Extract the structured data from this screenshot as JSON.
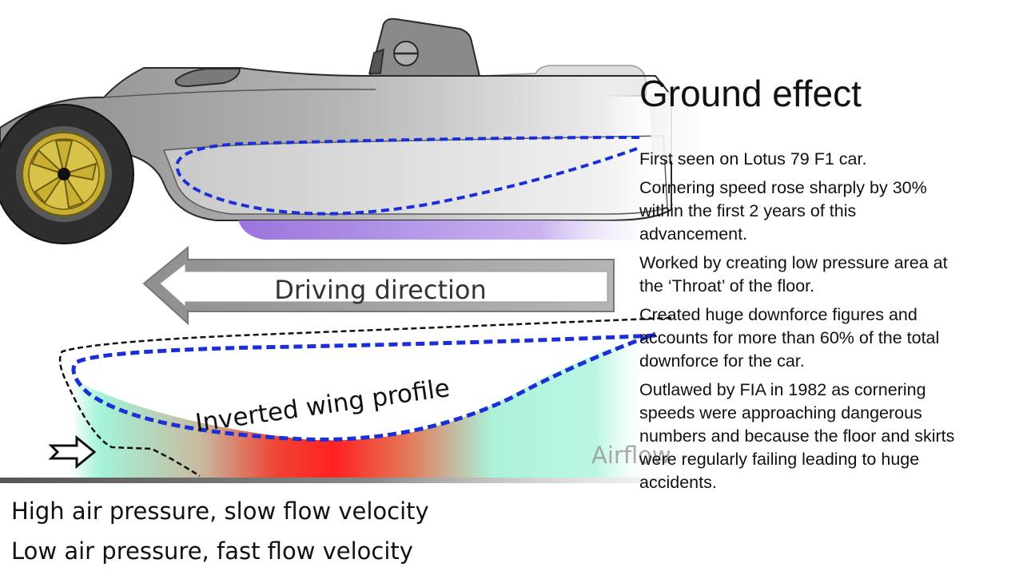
{
  "slide": {
    "title": "Ground effect",
    "bullets": [
      "First seen on Lotus 79 F1 car.",
      "Cornering speed rose sharply by 30% within the first 2 years of this advancement.",
      "Worked by creating low pressure area at the ‘Throat’ of the floor.",
      "Created huge downforce figures and accounts for more than 60% of the total downforce for the car.",
      "Outlawed by FIA in 1982 as cornering speeds were approaching dangerous numbers and because the floor and skirts were regularly failing leading to huge accidents."
    ]
  },
  "diagram": {
    "driving_direction_label": "Driving direction",
    "wing_profile_label": "Inverted wing profile",
    "airflow_label": "Airflow",
    "legend": [
      "High air pressure, slow flow velocity",
      "Low air pressure, fast flow velocity"
    ],
    "colors": {
      "car_body": "#a8a8a8",
      "wing_outline": "#1a2fd6",
      "low_pressure": "#ff1a1a",
      "high_pressure": "#9ff5d8",
      "skirt": "#a47fe0",
      "wheel_rim": "#c9b033"
    }
  }
}
